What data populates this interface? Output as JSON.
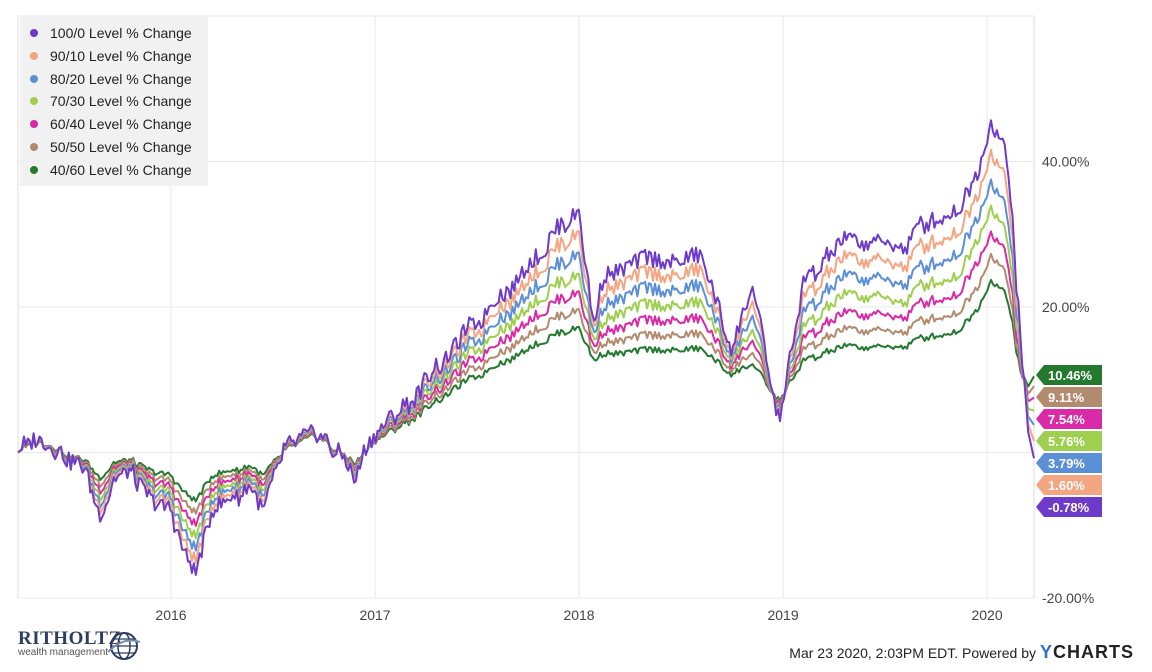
{
  "chart_data": {
    "type": "line",
    "title": "",
    "xlabel": "",
    "ylabel": "",
    "x_range": [
      2015.25,
      2020.23
    ],
    "ylim": [
      -20,
      60
    ],
    "x_ticks": [
      {
        "value": 2016,
        "label": "2016"
      },
      {
        "value": 2017,
        "label": "2017"
      },
      {
        "value": 2018,
        "label": "2018"
      },
      {
        "value": 2019,
        "label": "2019"
      },
      {
        "value": 2020,
        "label": "2020"
      }
    ],
    "y_ticks": [
      {
        "value": 40,
        "label": "40.00%"
      },
      {
        "value": 20,
        "label": "20.00%"
      },
      {
        "value": -20,
        "label": "-20.00%"
      }
    ],
    "grid": true,
    "legend_position": "top-left",
    "x": [
      2015.25,
      2015.33,
      2015.42,
      2015.5,
      2015.58,
      2015.65,
      2015.72,
      2015.8,
      2015.9,
      2016.0,
      2016.05,
      2016.12,
      2016.2,
      2016.3,
      2016.4,
      2016.45,
      2016.55,
      2016.7,
      2016.85,
      2016.9,
      2016.95,
      2017.0,
      2017.2,
      2017.4,
      2017.6,
      2017.8,
      2018.0,
      2018.07,
      2018.12,
      2018.2,
      2018.3,
      2018.45,
      2018.6,
      2018.75,
      2018.85,
      2018.98,
      2019.1,
      2019.3,
      2019.45,
      2019.6,
      2019.7,
      2019.85,
      2019.95,
      2020.02,
      2020.08,
      2020.12,
      2020.16,
      2020.2,
      2020.23
    ],
    "series": [
      {
        "name": "100/0 Level % Change",
        "color": "#6e3ac9",
        "end_label": "-0.78%",
        "values": [
          0,
          2,
          1,
          -1,
          -2,
          -9,
          -4,
          -3,
          -6,
          -8,
          -12,
          -17,
          -8,
          -6,
          -5,
          -8,
          0,
          3,
          -1,
          -4,
          0,
          2,
          8,
          15,
          21,
          27,
          34,
          17,
          24,
          25,
          27,
          26,
          27,
          14,
          23,
          4,
          23,
          29,
          29,
          28,
          32,
          33,
          38,
          45,
          43,
          35,
          16,
          3,
          -0.78
        ]
      },
      {
        "name": "90/10 Level % Change",
        "color": "#f4a582",
        "end_label": "1.60%",
        "values": [
          0,
          2,
          1,
          -1,
          -2,
          -8,
          -3.5,
          -2.7,
          -5.4,
          -7.2,
          -10.8,
          -15.3,
          -7.2,
          -5.4,
          -4.5,
          -7.2,
          0,
          2.9,
          -0.9,
          -3.6,
          0,
          1.9,
          7.5,
          14,
          19.5,
          25,
          31,
          16.5,
          22,
          23,
          25,
          24,
          25,
          13.5,
          21,
          4.5,
          21,
          26.5,
          26.5,
          25.5,
          29,
          30,
          35,
          41,
          39,
          32,
          15,
          4,
          1.6
        ]
      },
      {
        "name": "80/20 Level % Change",
        "color": "#5b8fd6",
        "end_label": "3.79%",
        "values": [
          0,
          1.9,
          1,
          -0.9,
          -1.8,
          -7.2,
          -3.1,
          -2.4,
          -4.8,
          -6.4,
          -9.6,
          -13.6,
          -6.4,
          -4.8,
          -4,
          -6.4,
          0,
          2.8,
          -0.8,
          -3.2,
          0,
          1.8,
          7,
          13,
          18,
          23,
          28,
          15.8,
          20,
          21,
          22.8,
          22,
          22.8,
          13,
          19,
          5,
          19,
          24,
          24,
          23,
          26,
          27,
          32,
          37,
          35,
          29,
          14,
          5,
          3.79
        ]
      },
      {
        "name": "70/30 Level % Change",
        "color": "#9fcf4f",
        "end_label": "5.76%",
        "values": [
          0,
          1.8,
          1,
          -0.8,
          -1.6,
          -6.3,
          -2.7,
          -2.1,
          -4.2,
          -5.6,
          -8.4,
          -11.9,
          -5.6,
          -4.2,
          -3.5,
          -5.6,
          0,
          2.7,
          -0.7,
          -2.8,
          0,
          1.7,
          6.5,
          12,
          16.5,
          21,
          25,
          15,
          18,
          19,
          20.5,
          20,
          20.5,
          12.5,
          17,
          5.5,
          17,
          21.5,
          21.5,
          20.5,
          23.5,
          24,
          29,
          33.5,
          31.5,
          26,
          13,
          6,
          5.76
        ]
      },
      {
        "name": "60/40 Level % Change",
        "color": "#d92aa7",
        "end_label": "7.54%",
        "values": [
          0,
          1.7,
          1,
          -0.7,
          -1.4,
          -5.4,
          -2.3,
          -1.8,
          -3.6,
          -4.8,
          -7.2,
          -10.2,
          -4.8,
          -3.6,
          -3,
          -4.8,
          0,
          2.6,
          -0.6,
          -2.4,
          0,
          1.6,
          6,
          11,
          15,
          19,
          22.5,
          14.2,
          16.5,
          17,
          18.3,
          18,
          18.3,
          12,
          15.5,
          6,
          15.5,
          19,
          19,
          18.5,
          21,
          21.5,
          26,
          30,
          28.5,
          23.5,
          12,
          7,
          7.54
        ]
      },
      {
        "name": "50/50 Level % Change",
        "color": "#b28a6e",
        "end_label": "9.11%",
        "values": [
          0,
          1.6,
          1,
          -0.6,
          -1.2,
          -4.5,
          -1.9,
          -1.5,
          -3,
          -4,
          -6,
          -8.5,
          -4,
          -3,
          -2.5,
          -4,
          0,
          2.5,
          -0.5,
          -2,
          0,
          1.5,
          5.5,
          10,
          13.5,
          17,
          20,
          13.4,
          15,
          15.3,
          16.2,
          16,
          16.2,
          11.3,
          13.8,
          6.5,
          14,
          16.8,
          16.8,
          16.5,
          18.5,
          19,
          22.5,
          27,
          25.5,
          21,
          11.5,
          8,
          9.11
        ]
      },
      {
        "name": "40/60 Level % Change",
        "color": "#237a2f",
        "end_label": "10.46%",
        "values": [
          0,
          1.5,
          1,
          -0.5,
          -1,
          -3.6,
          -1.5,
          -1.2,
          -2.4,
          -3.2,
          -4.8,
          -6.8,
          -3.2,
          -2.4,
          -2,
          -3.2,
          0,
          2.4,
          -0.4,
          -1.6,
          0,
          1.4,
          5,
          9,
          12,
          15,
          17.5,
          12.5,
          13.5,
          13.6,
          14.2,
          14,
          14.2,
          10.7,
          12.2,
          7,
          12.5,
          14.5,
          14.5,
          14.5,
          16,
          16.5,
          19.5,
          23.5,
          22.5,
          19,
          11,
          9,
          10.46
        ]
      }
    ]
  },
  "footer": {
    "logo_title": "RITHOLTZ",
    "logo_sub": "wealth management",
    "credit": "Mar 23 2020, 2:03PM EDT. Powered by",
    "brand_y": "Y",
    "brand_rest": "CHARTS"
  }
}
